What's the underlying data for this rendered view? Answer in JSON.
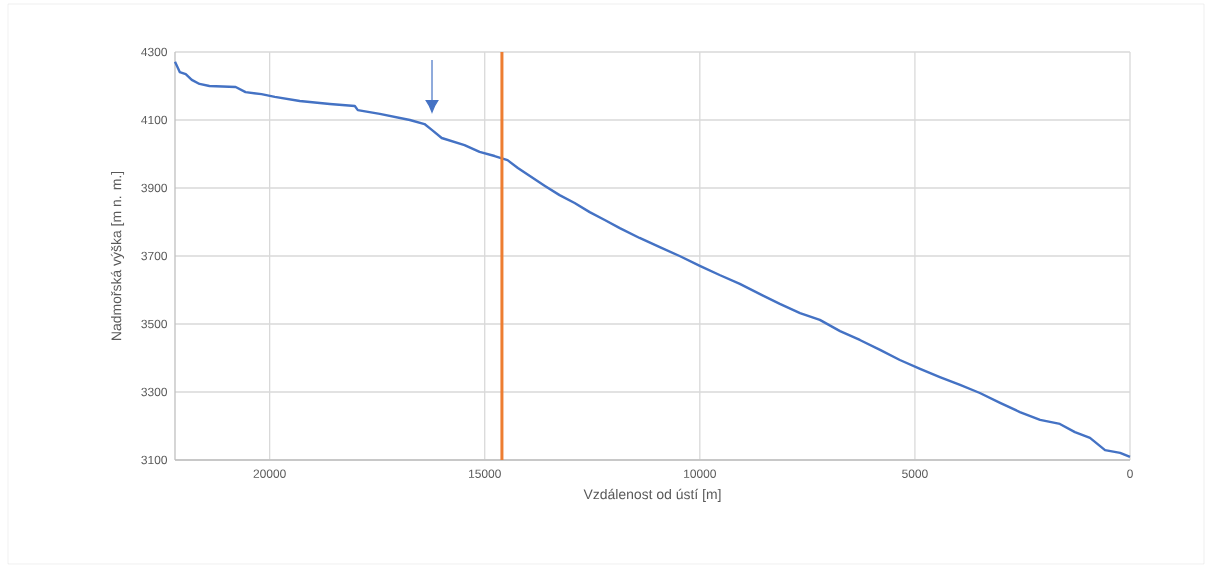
{
  "chart_data": {
    "type": "line",
    "xlabel": "Vzdálenost od ústí [m]",
    "ylabel": "Nadmořská výška [m n. m.]",
    "xlim": [
      22200,
      0
    ],
    "xticks": [
      20000,
      15000,
      10000,
      5000,
      0
    ],
    "ylim": [
      3100,
      4300
    ],
    "yticks": [
      3100,
      3300,
      3500,
      3700,
      3900,
      4100,
      4300
    ],
    "grid": true,
    "x": [
      22200,
      22090,
      21950,
      21810,
      21630,
      21400,
      20790,
      20560,
      20190,
      19880,
      19300,
      18600,
      18020,
      17950,
      17440,
      16740,
      16400,
      16230,
      16000,
      15470,
      15120,
      14770,
      14470,
      14230,
      13950,
      13600,
      13260,
      12910,
      12560,
      12210,
      11860,
      11400,
      10930,
      10470,
      10000,
      9540,
      9070,
      8600,
      8140,
      7670,
      7210,
      6740,
      6280,
      5810,
      5350,
      4880,
      4420,
      3950,
      3490,
      3020,
      2560,
      2090,
      1630,
      1280,
      930,
      580,
      230,
      0
    ],
    "series": [
      {
        "color": "#4472c4",
        "values": [
          4271,
          4241,
          4235,
          4218,
          4206,
          4200,
          4197,
          4182,
          4176,
          4168,
          4156,
          4147,
          4141,
          4129,
          4118,
          4100,
          4088,
          4071,
          4047,
          4026,
          4006,
          3994,
          3982,
          3959,
          3935,
          3906,
          3879,
          3856,
          3829,
          3806,
          3782,
          3753,
          3726,
          3700,
          3671,
          3644,
          3618,
          3588,
          3559,
          3532,
          3512,
          3479,
          3453,
          3424,
          3394,
          3368,
          3344,
          3321,
          3297,
          3268,
          3241,
          3218,
          3206,
          3182,
          3165,
          3129,
          3121,
          3109
        ]
      }
    ],
    "ref_lines": [
      {
        "axis": "x",
        "value": 14600,
        "color": "#ed7d31"
      }
    ]
  }
}
